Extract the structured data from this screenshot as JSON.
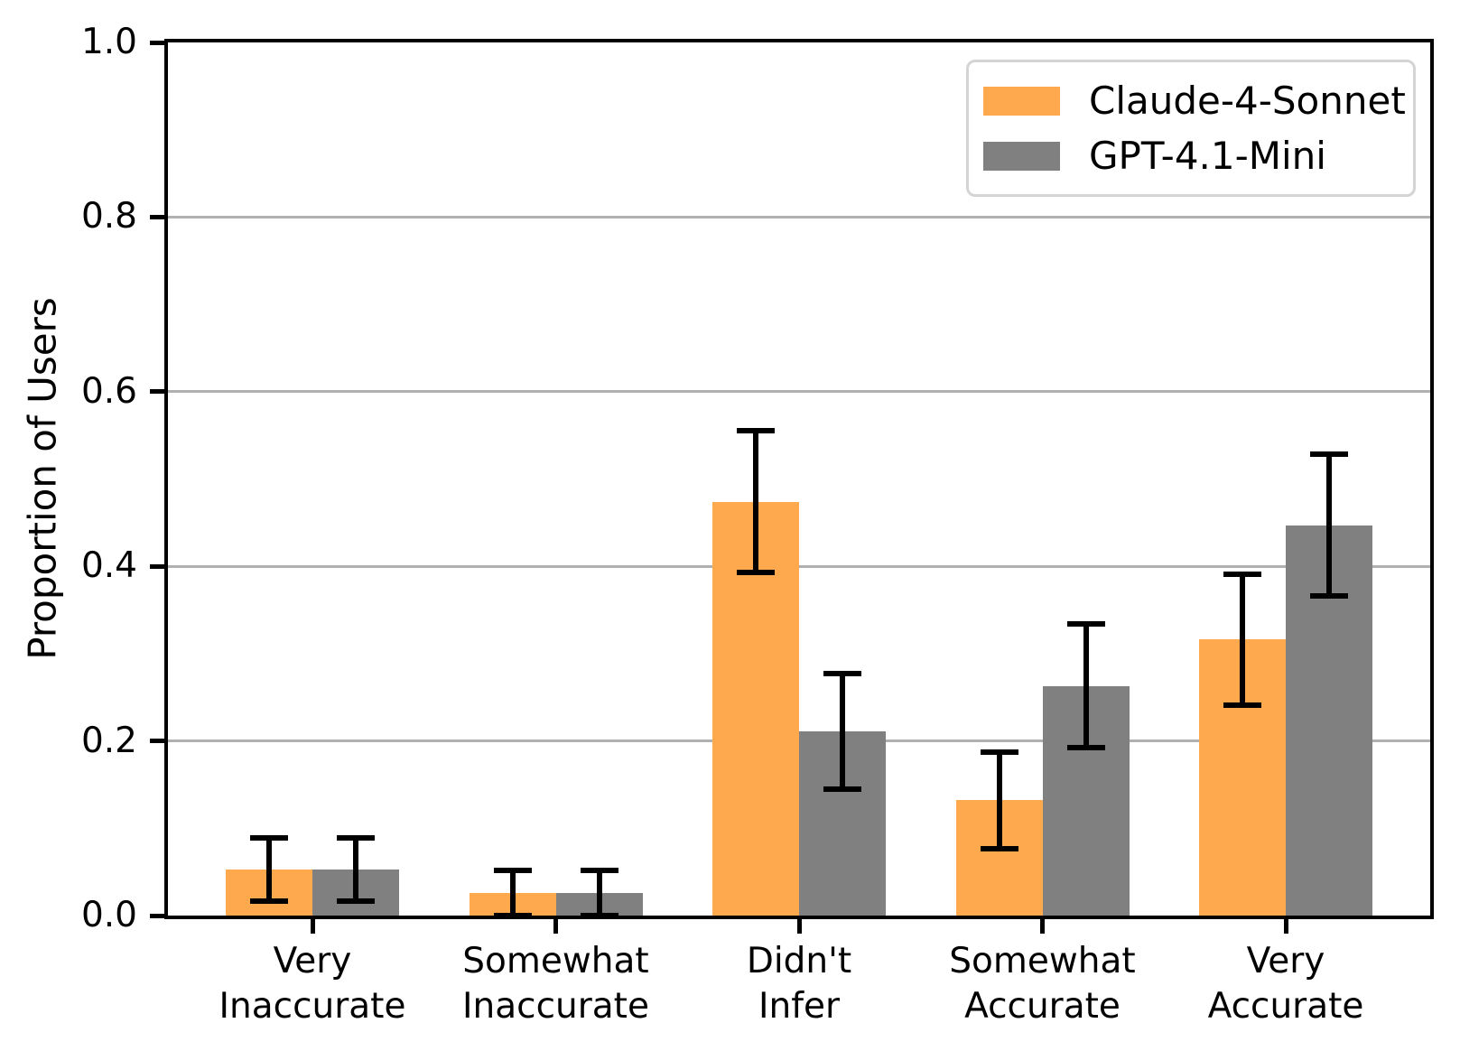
{
  "chart_data": {
    "type": "bar",
    "title": "",
    "xlabel": "",
    "ylabel": "Proportion of Users",
    "ylim": [
      0.0,
      1.0
    ],
    "yticks": [
      0.0,
      0.2,
      0.4,
      0.6,
      0.8,
      1.0
    ],
    "ytick_labels": [
      "0.0",
      "0.2",
      "0.4",
      "0.6",
      "0.8",
      "1.0"
    ],
    "grid": "horizontal",
    "grid_color": "#b0b0b0",
    "legend_position": "upper right",
    "categories": [
      [
        "Very",
        "Inaccurate"
      ],
      [
        "Somewhat",
        "Inaccurate"
      ],
      [
        "Didn't",
        "Infer"
      ],
      [
        "Somewhat",
        "Accurate"
      ],
      [
        "Very",
        "Accurate"
      ]
    ],
    "series": [
      {
        "name": "Claude-4-Sonnet",
        "color": "#FFA94F",
        "values": [
          0.053,
          0.026,
          0.474,
          0.132,
          0.316
        ],
        "error_bars": [
          0.036,
          0.026,
          0.081,
          0.055,
          0.075
        ]
      },
      {
        "name": "GPT-4.1-Mini",
        "color": "#808080",
        "values": [
          0.053,
          0.026,
          0.211,
          0.263,
          0.447
        ],
        "error_bars": [
          0.036,
          0.026,
          0.066,
          0.071,
          0.081
        ]
      }
    ],
    "error_bar_color": "#000000"
  }
}
